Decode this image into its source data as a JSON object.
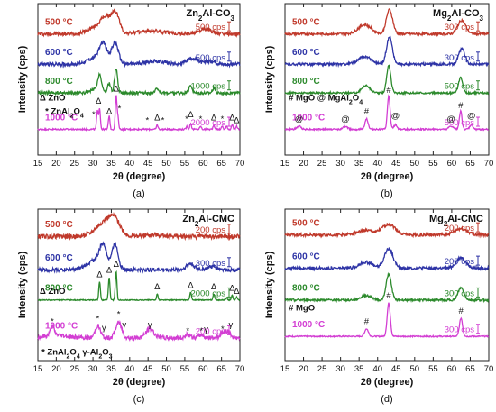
{
  "chart_data": [
    {
      "type": "line",
      "panel_label": "(a)",
      "title": "Zn2Al-CO3",
      "title_parts": {
        "base": "Zn",
        "sub1": "2",
        "mid": "Al-CO",
        "sub2": "3"
      },
      "xlabel": "2θ (degree)",
      "ylabel": "Intensity (cps)",
      "xlim": [
        15,
        70
      ],
      "xticks": [
        15,
        20,
        25,
        30,
        35,
        40,
        45,
        50,
        55,
        60,
        65,
        70
      ],
      "ylim": [
        0,
        100
      ],
      "series": [
        {
          "name": "500 °C",
          "color": "#c0392b",
          "scale_label": "500 cps",
          "baseline": 80,
          "noise": 1.2,
          "peaks": [
            [
              33.5,
              10,
              2.0
            ],
            [
              36.2,
              13,
              1.5
            ],
            [
              30.5,
              4,
              3.0
            ],
            [
              46,
              2,
              5
            ],
            [
              60.5,
              3,
              2.5
            ]
          ]
        },
        {
          "name": "600 °C",
          "color": "#2e34a6",
          "scale_label": "500 cps",
          "baseline": 60,
          "noise": 1.2,
          "peaks": [
            [
              32.8,
              12,
              1.5
            ],
            [
              36.0,
              14,
              1.3
            ],
            [
              30.5,
              4,
              3.0
            ],
            [
              57,
              4,
              2
            ],
            [
              62,
              2,
              2
            ],
            [
              47,
              2,
              4
            ]
          ]
        },
        {
          "name": "800 °C",
          "color": "#2c8a2c",
          "scale_label": "1000 cps",
          "baseline": 41,
          "noise": 1.0,
          "peaks": [
            [
              31.8,
              10,
              0.6
            ],
            [
              34.4,
              6,
              0.6
            ],
            [
              36.3,
              16,
              0.6
            ],
            [
              47.5,
              3,
              0.6
            ],
            [
              56.6,
              5,
              0.6
            ],
            [
              62.9,
              3,
              0.6
            ],
            [
              31.2,
              3,
              2
            ]
          ]
        },
        {
          "name": "1000 °C",
          "color": "#d33ed3",
          "scale_label": "2000 cps",
          "baseline": 17,
          "noise": 0.5,
          "peaks": [
            [
              31.2,
              12,
              0.3
            ],
            [
              31.8,
              14,
              0.3
            ],
            [
              34.4,
              9,
              0.3
            ],
            [
              36.3,
              22,
              0.3
            ],
            [
              36.8,
              8,
              0.3
            ],
            [
              47.5,
              3,
              0.3
            ],
            [
              55.6,
              2,
              0.3
            ],
            [
              56.6,
              4,
              0.3
            ],
            [
              59.3,
              2,
              0.3
            ],
            [
              62.9,
              3,
              0.3
            ],
            [
              65.2,
              2,
              0.3
            ],
            [
              66.4,
              2,
              0.3
            ],
            [
              67.9,
              3,
              0.3
            ],
            [
              69.1,
              2,
              0.3
            ]
          ]
        }
      ],
      "annotations": [
        {
          "text": "Δ ZnO",
          "x": 15.5,
          "y": 36
        },
        {
          "text": "* ZnAl2O4",
          "x": 17,
          "y": 27,
          "sub": true
        },
        {
          "text": "Δ",
          "x": 31.5,
          "y": 34
        },
        {
          "text": "Δ",
          "x": 34.4,
          "y": 27
        },
        {
          "text": "Δ",
          "x": 36.3,
          "y": 42
        },
        {
          "text": "*",
          "x": 30.2,
          "y": 25
        },
        {
          "text": "*",
          "x": 37.2,
          "y": 29
        },
        {
          "text": "*",
          "x": 44.8,
          "y": 21
        },
        {
          "text": "Δ",
          "x": 47.5,
          "y": 23
        },
        {
          "text": "*",
          "x": 49,
          "y": 21
        },
        {
          "text": "*",
          "x": 55.5,
          "y": 22
        },
        {
          "text": "Δ",
          "x": 56.6,
          "y": 25
        },
        {
          "text": "*",
          "x": 59.3,
          "y": 22
        },
        {
          "text": "Δ",
          "x": 62.9,
          "y": 23
        },
        {
          "text": "*",
          "x": 65.2,
          "y": 22
        },
        {
          "text": "Δ",
          "x": 67.9,
          "y": 23
        },
        {
          "text": "Δ",
          "x": 69.1,
          "y": 21
        }
      ]
    },
    {
      "type": "line",
      "panel_label": "(b)",
      "title": "Mg2Al-CO3",
      "title_parts": {
        "base": "Mg",
        "sub1": "2",
        "mid": "Al-CO",
        "sub2": "3"
      },
      "xlabel": "2θ (degree)",
      "ylabel": "Intensity (cps)",
      "xlim": [
        15,
        70
      ],
      "xticks": [
        15,
        20,
        25,
        30,
        35,
        40,
        45,
        50,
        55,
        60,
        65,
        70
      ],
      "ylim": [
        0,
        100
      ],
      "series": [
        {
          "name": "500 °C",
          "color": "#c0392b",
          "scale_label": "300 cps",
          "baseline": 80,
          "noise": 0.8,
          "peaks": [
            [
              43.2,
              16,
              1.2
            ],
            [
              36.5,
              6,
              2.5
            ],
            [
              62.7,
              9,
              1.5
            ]
          ]
        },
        {
          "name": "600 °C",
          "color": "#2e34a6",
          "scale_label": "300 cps",
          "baseline": 60,
          "noise": 0.8,
          "peaks": [
            [
              43.2,
              18,
              1.1
            ],
            [
              36.5,
              5,
              2.5
            ],
            [
              62.7,
              10,
              1.2
            ]
          ]
        },
        {
          "name": "800 °C",
          "color": "#2c8a2c",
          "scale_label": "500 cps",
          "baseline": 41,
          "noise": 0.6,
          "peaks": [
            [
              43.0,
              18,
              0.8
            ],
            [
              36.8,
              5,
              1.5
            ],
            [
              62.4,
              10,
              0.8
            ]
          ]
        },
        {
          "name": "1000 °C",
          "color": "#d33ed3",
          "scale_label": "500 cps",
          "baseline": 17,
          "noise": 0.5,
          "peaks": [
            [
              43.0,
              22,
              0.5
            ],
            [
              37.0,
              7,
              0.6
            ],
            [
              62.4,
              12,
              0.5
            ],
            [
              18.8,
              2,
              0.8
            ],
            [
              31.3,
              2,
              0.8
            ],
            [
              44.8,
              3,
              0.6
            ],
            [
              59.8,
              2,
              0.8
            ],
            [
              65.3,
              3,
              0.6
            ]
          ]
        }
      ],
      "annotations": [
        {
          "text": "# MgO  @ MgAl2O4",
          "x": 16,
          "y": 36,
          "sub": true
        },
        {
          "text": "@",
          "x": 18.8,
          "y": 22
        },
        {
          "text": "@",
          "x": 31.3,
          "y": 22
        },
        {
          "text": "#",
          "x": 37.0,
          "y": 27
        },
        {
          "text": "#",
          "x": 43.0,
          "y": 41
        },
        {
          "text": "@",
          "x": 44.8,
          "y": 24
        },
        {
          "text": "@",
          "x": 59.8,
          "y": 22
        },
        {
          "text": "#",
          "x": 62.4,
          "y": 31
        },
        {
          "text": "@",
          "x": 65.3,
          "y": 24
        }
      ]
    },
    {
      "type": "line",
      "panel_label": "(c)",
      "title": "Zn2Al-CMC",
      "title_parts": {
        "base": "Zn",
        "sub1": "2",
        "mid": "Al-CMC",
        "sub2": ""
      },
      "xlabel": "2θ (degree)",
      "ylabel": "Intensity (cps)",
      "xlim": [
        15,
        70
      ],
      "xticks": [
        15,
        20,
        25,
        30,
        35,
        40,
        45,
        50,
        55,
        60,
        65,
        70
      ],
      "ylim": [
        0,
        100
      ],
      "series": [
        {
          "name": "500 °C",
          "color": "#c0392b",
          "scale_label": "200 cps",
          "baseline": 82,
          "noise": 1.5,
          "peaks": [
            [
              33.5,
              10,
              3.5
            ],
            [
              36.0,
              7,
              2
            ],
            [
              47,
              1,
              4
            ]
          ]
        },
        {
          "name": "600 °C",
          "color": "#2e34a6",
          "scale_label": "300 cps",
          "baseline": 60,
          "noise": 1.3,
          "peaks": [
            [
              32.8,
              14,
              1.4
            ],
            [
              36.0,
              17,
              1.2
            ],
            [
              30.5,
              6,
              3.0
            ],
            [
              56.5,
              4,
              1.5
            ],
            [
              62.5,
              2,
              2
            ]
          ]
        },
        {
          "name": "800 °C",
          "color": "#2c8a2c",
          "scale_label": "2000 cps",
          "baseline": 40,
          "noise": 0.3,
          "peaks": [
            [
              31.8,
              12,
              0.3
            ],
            [
              34.4,
              15,
              0.3
            ],
            [
              36.3,
              19,
              0.3
            ],
            [
              47.5,
              4,
              0.3
            ],
            [
              56.6,
              5,
              0.3
            ],
            [
              62.9,
              4,
              0.3
            ],
            [
              66.4,
              1.5,
              0.3
            ],
            [
              67.9,
              3,
              0.3
            ],
            [
              69.1,
              2,
              0.3
            ]
          ]
        },
        {
          "name": "1000 °C",
          "color": "#d33ed3",
          "scale_label": "200 cps",
          "baseline": 15,
          "noise": 1.5,
          "peaks": [
            [
              18.9,
              6,
              0.7
            ],
            [
              31.3,
              8,
              1.0
            ],
            [
              37.0,
              10,
              1.2
            ],
            [
              45.5,
              6,
              1.5
            ],
            [
              55.8,
              2,
              1
            ],
            [
              59.5,
              2,
              1
            ],
            [
              65.3,
              3,
              1
            ],
            [
              66.8,
              4,
              1
            ],
            [
              20,
              2,
              4
            ]
          ]
        }
      ],
      "annotations": [
        {
          "text": "Δ ZnO",
          "x": 15.5,
          "y": 44
        },
        {
          "text": "* ZnAl2O4   γ-Al2O3",
          "x": 16,
          "y": 4,
          "sub": true
        },
        {
          "text": "Δ",
          "x": 31.8,
          "y": 55
        },
        {
          "text": "Δ",
          "x": 34.4,
          "y": 58
        },
        {
          "text": "Δ",
          "x": 36.3,
          "y": 62
        },
        {
          "text": "Δ",
          "x": 47.5,
          "y": 47
        },
        {
          "text": "Δ",
          "x": 56.6,
          "y": 48
        },
        {
          "text": "Δ",
          "x": 62.9,
          "y": 47
        },
        {
          "text": "Δ",
          "x": 67.9,
          "y": 46
        },
        {
          "text": "Δ",
          "x": 69.1,
          "y": 44
        },
        {
          "text": "*",
          "x": 18.9,
          "y": 24
        },
        {
          "text": "*",
          "x": 31.3,
          "y": 26
        },
        {
          "text": "γ",
          "x": 33,
          "y": 20
        },
        {
          "text": "*",
          "x": 37.0,
          "y": 29
        },
        {
          "text": "γ",
          "x": 38.5,
          "y": 22
        },
        {
          "text": "γ",
          "x": 45.5,
          "y": 22
        },
        {
          "text": "*",
          "x": 55.8,
          "y": 18
        },
        {
          "text": "*",
          "x": 59.5,
          "y": 18
        },
        {
          "text": "γ",
          "x": 60.8,
          "y": 19
        },
        {
          "text": "*",
          "x": 65.3,
          "y": 19
        },
        {
          "text": "γ",
          "x": 67.5,
          "y": 22
        }
      ]
    },
    {
      "type": "line",
      "panel_label": "(d)",
      "title": "Mg2Al-CMC",
      "title_parts": {
        "base": "Mg",
        "sub1": "2",
        "mid": "Al-CMC",
        "sub2": ""
      },
      "xlabel": "2θ (degree)",
      "ylabel": "Intensity (cps)",
      "xlim": [
        15,
        70
      ],
      "xticks": [
        15,
        20,
        25,
        30,
        35,
        40,
        45,
        50,
        55,
        60,
        65,
        70
      ],
      "ylim": [
        0,
        100
      ],
      "series": [
        {
          "name": "500 °C",
          "color": "#c0392b",
          "scale_label": "200 cps",
          "baseline": 83,
          "noise": 1.0,
          "peaks": [
            [
              43.0,
              7,
              2.5
            ],
            [
              36.5,
              3,
              3
            ],
            [
              62.5,
              4,
              2.5
            ]
          ]
        },
        {
          "name": "600 °C",
          "color": "#2e34a6",
          "scale_label": "200 cps",
          "baseline": 61,
          "noise": 1.0,
          "peaks": [
            [
              43.0,
              13,
              1.6
            ],
            [
              36.8,
              4,
              2.5
            ],
            [
              62.5,
              7,
              1.8
            ]
          ]
        },
        {
          "name": "800 °C",
          "color": "#2c8a2c",
          "scale_label": "300 cps",
          "baseline": 40,
          "noise": 0.7,
          "peaks": [
            [
              43.0,
              17,
              1.0
            ],
            [
              37.0,
              3,
              2
            ],
            [
              62.5,
              8,
              1.1
            ]
          ]
        },
        {
          "name": "1000 °C",
          "color": "#d33ed3",
          "scale_label": "300 cps",
          "baseline": 16,
          "noise": 0.4,
          "peaks": [
            [
              43.0,
              22,
              0.6
            ],
            [
              37.0,
              5,
              0.7
            ],
            [
              62.5,
              12,
              0.6
            ]
          ]
        }
      ],
      "annotations": [
        {
          "text": "# MgO",
          "x": 16,
          "y": 33
        },
        {
          "text": "#",
          "x": 37.0,
          "y": 24
        },
        {
          "text": "#",
          "x": 43.0,
          "y": 41
        },
        {
          "text": "#",
          "x": 62.5,
          "y": 31
        }
      ]
    }
  ]
}
